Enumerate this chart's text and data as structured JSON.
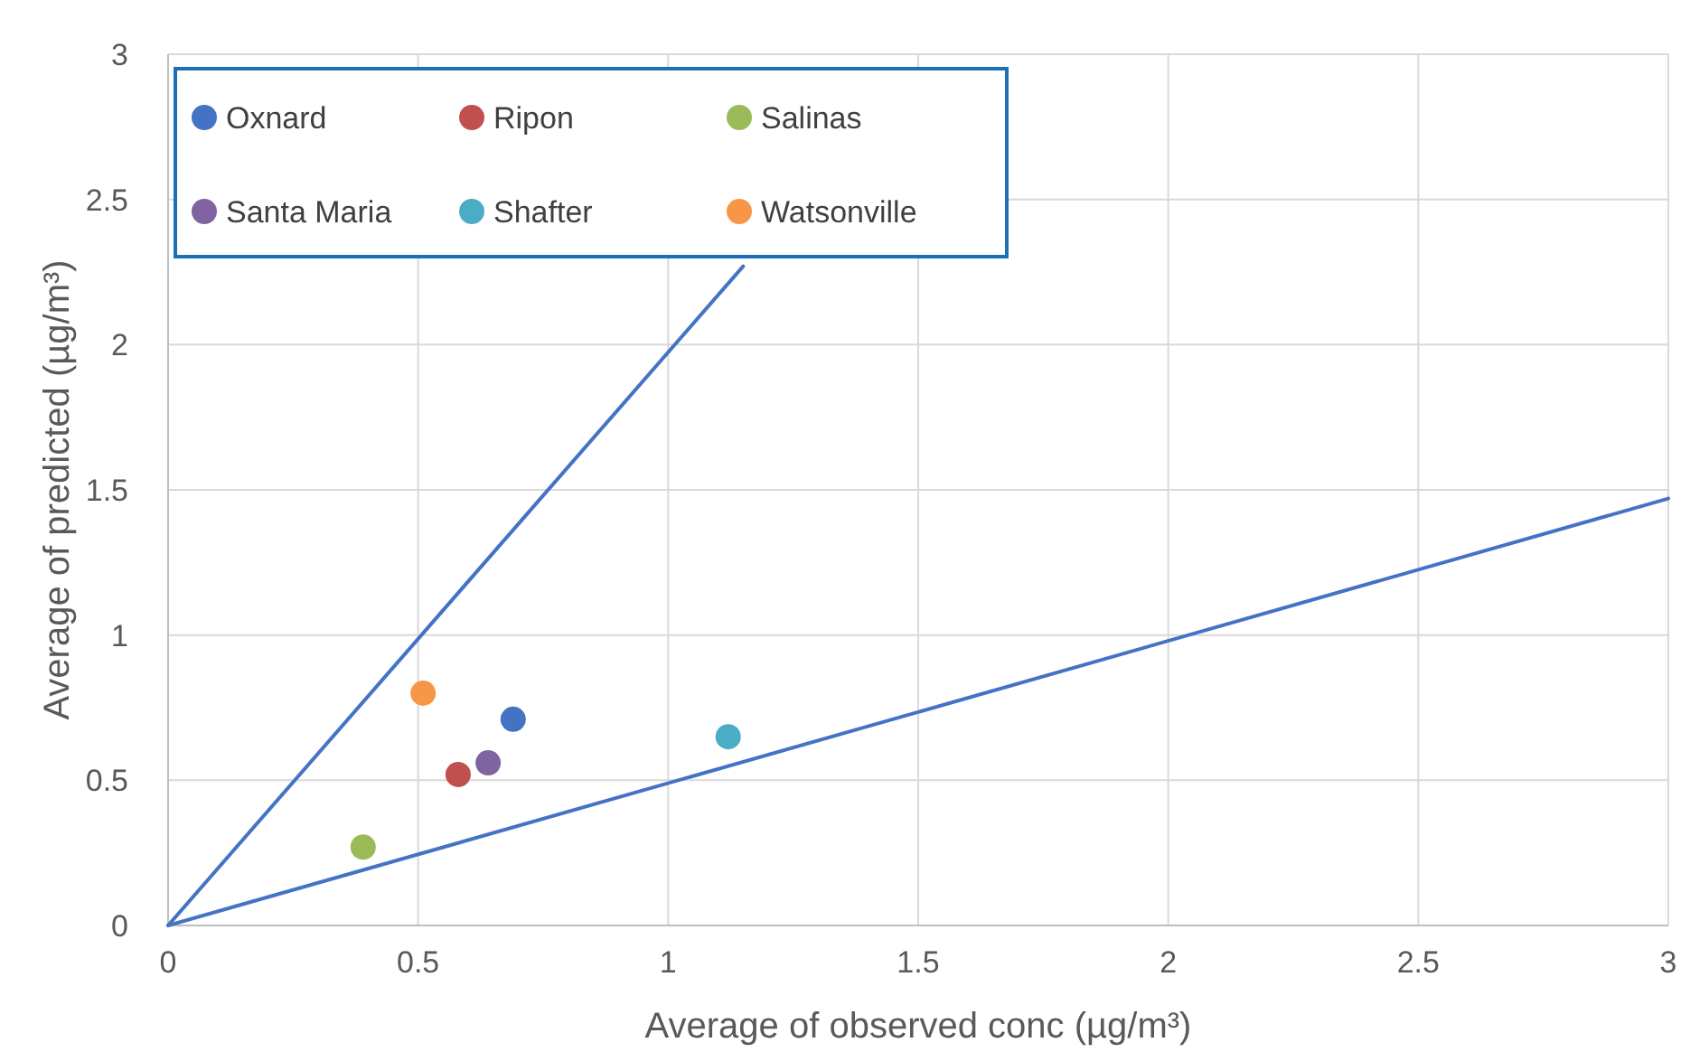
{
  "chart_data": {
    "type": "scatter",
    "xlabel": "Average of observed conc (µg/m³)",
    "ylabel": "Average of predicted (µg/m³)",
    "xlim": [
      0,
      3
    ],
    "ylim": [
      0,
      3
    ],
    "xticks": [
      0,
      0.5,
      1,
      1.5,
      2,
      2.5,
      3
    ],
    "yticks": [
      0,
      0.5,
      1,
      1.5,
      2,
      2.5,
      3
    ],
    "grid": true,
    "legend": "top left",
    "marker": "circle",
    "series": [
      {
        "name": "Oxnard",
        "color": "#4472c4",
        "x": [
          0.69
        ],
        "values": [
          0.71
        ]
      },
      {
        "name": "Ripon",
        "color": "#c0504d",
        "x": [
          0.58
        ],
        "values": [
          0.52
        ]
      },
      {
        "name": "Salinas",
        "color": "#9bbb59",
        "x": [
          0.39
        ],
        "values": [
          0.27
        ]
      },
      {
        "name": "Santa Maria",
        "color": "#8064a2",
        "x": [
          0.64
        ],
        "values": [
          0.56
        ]
      },
      {
        "name": "Shafter",
        "color": "#4bacc6",
        "x": [
          1.12
        ],
        "values": [
          0.65
        ]
      },
      {
        "name": "Watsonville",
        "color": "#f79646",
        "x": [
          0.51
        ],
        "values": [
          0.8
        ]
      },
      {
        "type": "line",
        "color": "#4472c4",
        "marker": "none",
        "x": [
          0,
          1.15
        ],
        "values": [
          0,
          2.27
        ]
      },
      {
        "type": "line",
        "color": "#4472c4",
        "marker": "none",
        "x": [
          0,
          3
        ],
        "values": [
          0,
          1.47
        ]
      }
    ]
  }
}
